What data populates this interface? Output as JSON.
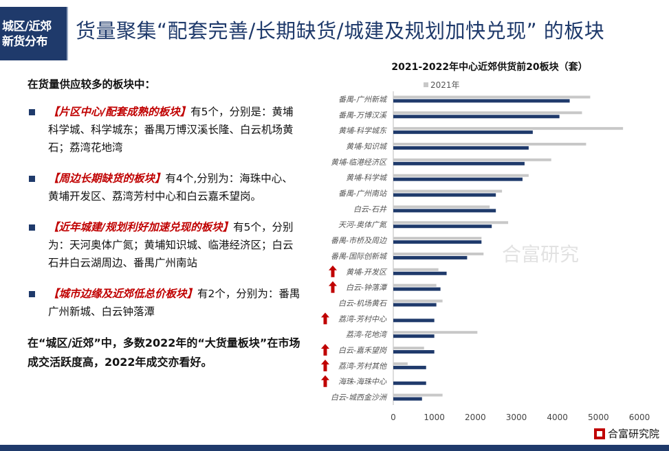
{
  "header": {
    "tag_line1": "城区/近郊",
    "tag_line2": "新货分布",
    "title": "货量聚集“配套完善/长期缺货/城建及规划加快兑现” 的板块"
  },
  "left": {
    "intro": "在货量供应较多的板块中：",
    "items": [
      {
        "bracket": "【片区中心/配套成熟的板块】",
        "text": "有5个，分别是：黄埔科学城、科学城东；番禺万博汉溪长隆、白云机场黄石；荔湾花地湾"
      },
      {
        "bracket": "【周边长期缺货的板块】",
        "text": "有4个,分别为：海珠中心、黄埔开发区、荔湾芳村中心和白云嘉禾望岗。"
      },
      {
        "bracket": "【近年城建/规划利好加速兑现的板块】",
        "text": "有5个，分别为：天河奥体广氮；黄埔知识城、临港经济区；白云石井白云湖周边、番禺广州南站"
      },
      {
        "bracket": "【城市边缘及近郊低总价板块】",
        "text": "有2个，分别为：番禺广州新城、白云钟落潭"
      }
    ],
    "closing": "在“城区/近郊”中，多数2022年的“大货量板块”在市场成交活跃度高，2022年成交亦看好。"
  },
  "watermark": "合富研究",
  "logo_text": "合富研究院",
  "colors": {
    "series_2022": "#1f3a6b",
    "series_2021": "#c8c8c8",
    "arrow": "#c00000"
  },
  "chart_data": {
    "type": "bar",
    "orientation": "horizontal",
    "title": "2021-2022年中心近郊供货前20板块（套）",
    "categories": [
      "番禺-广州新城",
      "番禺-万博汉溪",
      "黄埔-科学城东",
      "黄埔-知识城",
      "黄埔-临港经济区",
      "黄埔-科学城",
      "番禺-广州南站",
      "白云-石井",
      "天河-奥体广氮",
      "番禺-市桥及周边",
      "番禺-国际创新城",
      "黄埔-开发区",
      "白云-钟落潭",
      "白云-机场黄石",
      "荔湾-芳村中心",
      "荔湾-花地湾",
      "白云-嘉禾望岗",
      "荔湾-芳村其他",
      "海珠-海珠中心",
      "白云-城西金沙洲"
    ],
    "rising_marked": [
      "黄埔-开发区",
      "白云-钟落潭",
      "荔湾-芳村中心",
      "白云-嘉禾望岗",
      "荔湾-芳村其他",
      "海珠-海珠中心"
    ],
    "series": [
      {
        "name": "2021年",
        "values": [
          4800,
          4600,
          5600,
          4700,
          3850,
          3300,
          2650,
          2350,
          2800,
          2150,
          2200,
          1100,
          1050,
          1200,
          0,
          2050,
          750,
          350,
          0,
          1200
        ]
      },
      {
        "values": [
          4300,
          4050,
          3400,
          3300,
          3200,
          3150,
          2500,
          2500,
          2400,
          2150,
          1800,
          1300,
          1150,
          1050,
          1000,
          1000,
          1000,
          800,
          800,
          700
        ]
      }
    ],
    "xlim": [
      0,
      6000
    ],
    "xticks": [
      0,
      1000,
      2000,
      3000,
      4000,
      5000,
      6000
    ],
    "legend": "top-left"
  }
}
